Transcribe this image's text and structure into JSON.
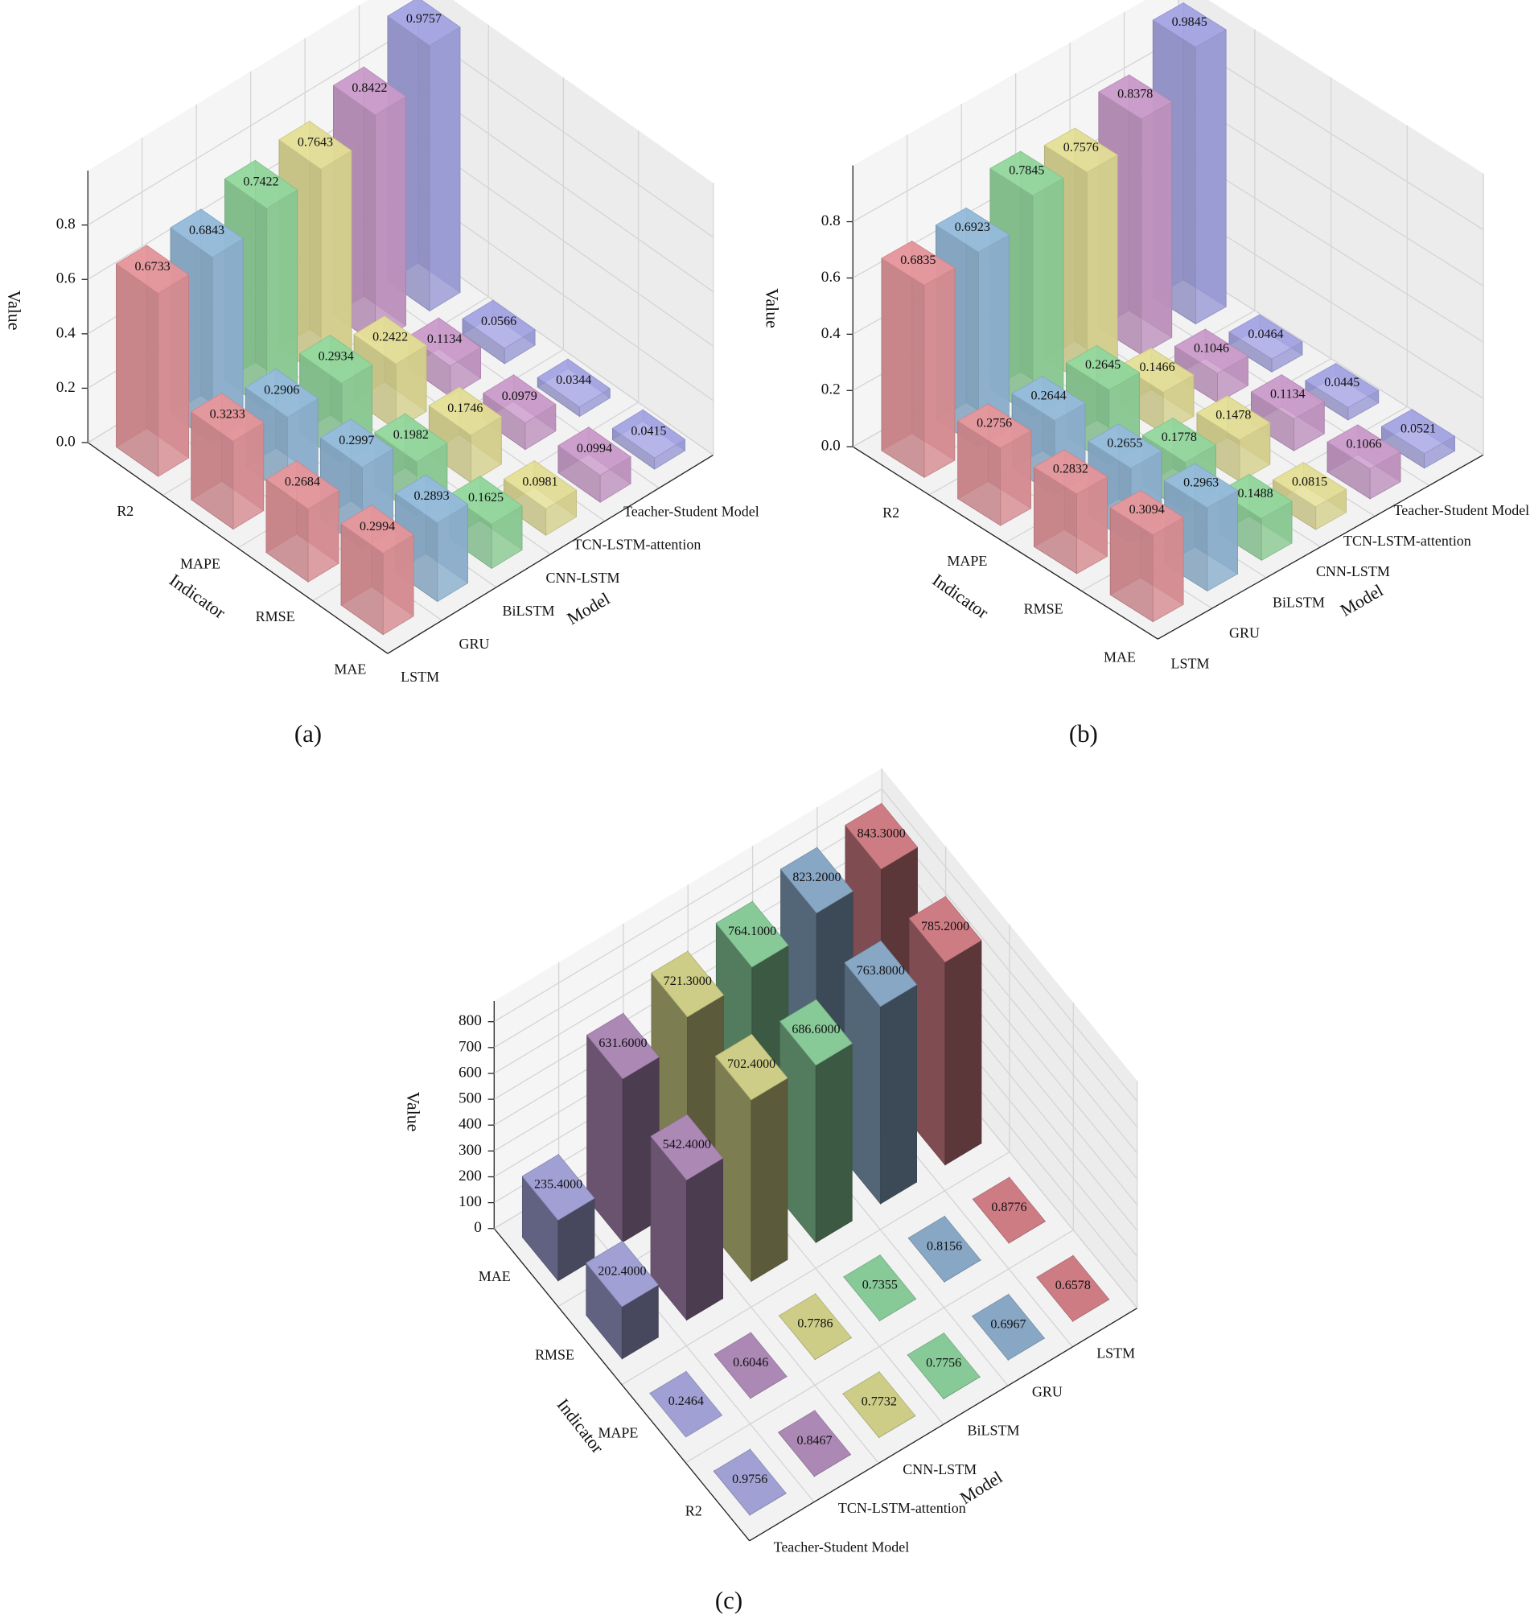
{
  "chart_data": [
    {
      "type": "bar3d",
      "caption": "(a)",
      "x_label": "Model",
      "y_label": "Indicator",
      "z_label": "Value",
      "categories": [
        "LSTM",
        "GRU",
        "BiLSTM",
        "CNN-LSTM",
        "TCN-LSTM-attention",
        "Teacher-Student Model"
      ],
      "colors": [
        "#f4a0a6",
        "#9fc8ea",
        "#9ee6a8",
        "#f2eea0",
        "#d8a6d8",
        "#b0b0f2"
      ],
      "series": [
        {
          "name": "R2",
          "values": [
            0.6733,
            0.6843,
            0.7422,
            0.7643,
            0.8422,
            0.9757
          ]
        },
        {
          "name": "MAPE",
          "values": [
            0.3233,
            0.2906,
            0.2934,
            0.2422,
            0.1134,
            0.0566
          ]
        },
        {
          "name": "RMSE",
          "values": [
            0.2684,
            0.2997,
            0.1982,
            0.1746,
            0.0979,
            0.0344
          ]
        },
        {
          "name": "MAE",
          "values": [
            0.2994,
            0.2893,
            0.1625,
            0.0981,
            0.0994,
            0.0415
          ]
        }
      ],
      "zlim": [
        0,
        1
      ],
      "zticks": [
        {
          "value": 0,
          "label": "0.0"
        },
        0.2,
        0.4,
        0.6,
        0.8
      ],
      "grid": true
    },
    {
      "type": "bar3d",
      "caption": "(b)",
      "x_label": "Model",
      "y_label": "Indicator",
      "z_label": "Value",
      "categories": [
        "LSTM",
        "GRU",
        "BiLSTM",
        "CNN-LSTM",
        "TCN-LSTM-attention",
        "Teacher-Student Model"
      ],
      "colors": [
        "#f4a0a6",
        "#9fc8ea",
        "#9ee6a8",
        "#f2eea0",
        "#d8a6d8",
        "#b0b0f2"
      ],
      "series": [
        {
          "name": "R2",
          "values": [
            0.6835,
            0.6923,
            0.7845,
            0.7576,
            0.8378,
            0.9845
          ]
        },
        {
          "name": "MAPE",
          "values": [
            0.2756,
            0.2644,
            0.2645,
            0.1466,
            0.1046,
            0.0464
          ]
        },
        {
          "name": "RMSE",
          "values": [
            0.2832,
            0.2655,
            0.1778,
            0.1478,
            0.1134,
            0.0445
          ]
        },
        {
          "name": "MAE",
          "values": [
            0.3094,
            0.2963,
            0.1488,
            0.0815,
            0.1066,
            0.0521
          ]
        }
      ],
      "zlim": [
        0,
        1
      ],
      "zticks": [
        {
          "value": 0,
          "label": "0.0"
        },
        0.2,
        0.4,
        0.6,
        0.8
      ],
      "grid": true
    },
    {
      "type": "bar3d",
      "caption": "(c)",
      "x_label": "Model",
      "y_label": "Indicator",
      "z_label": "Value",
      "categories": [
        "LSTM",
        "GRU",
        "BiLSTM",
        "CNN-LSTM",
        "TCN-LSTM-attention",
        "Teacher-Student Model"
      ],
      "colors": [
        "#d9838b",
        "#8fb0cf",
        "#8fd4a0",
        "#d8d88e",
        "#b58fbf",
        "#a8a8df"
      ],
      "series": [
        {
          "name": "MAE",
          "values": [
            843.3,
            823.2,
            764.1,
            721.3,
            631.6,
            235.4
          ],
          "value_labels": [
            "843.3000",
            "823.2000",
            "764.1000",
            "721.3000",
            "631.6000",
            "235.4000"
          ]
        },
        {
          "name": "RMSE",
          "values": [
            785.2,
            763.8,
            686.6,
            702.4,
            542.4,
            202.4
          ],
          "value_labels": [
            "785.2000",
            "763.8000",
            "686.6000",
            "702.4000",
            "542.4000",
            "202.4000"
          ]
        },
        {
          "name": "MAPE",
          "values": [
            0.8776,
            0.8156,
            0.7355,
            0.7786,
            0.6046,
            0.2464
          ],
          "value_labels": [
            "0.8776",
            "0.8156",
            "0.7355",
            "0.7786",
            "0.6046",
            "0.2464"
          ]
        },
        {
          "name": "R2",
          "values": [
            0.6578,
            0.6967,
            0.7756,
            0.7732,
            0.8467,
            0.9756
          ],
          "value_labels": [
            "0.6578",
            "0.6967",
            "0.7756",
            "0.7732",
            "0.8467",
            "0.9756"
          ]
        }
      ],
      "zlim": [
        0,
        880
      ],
      "zticks": [
        0,
        100,
        200,
        300,
        400,
        500,
        600,
        700,
        800
      ],
      "grid": true
    }
  ]
}
